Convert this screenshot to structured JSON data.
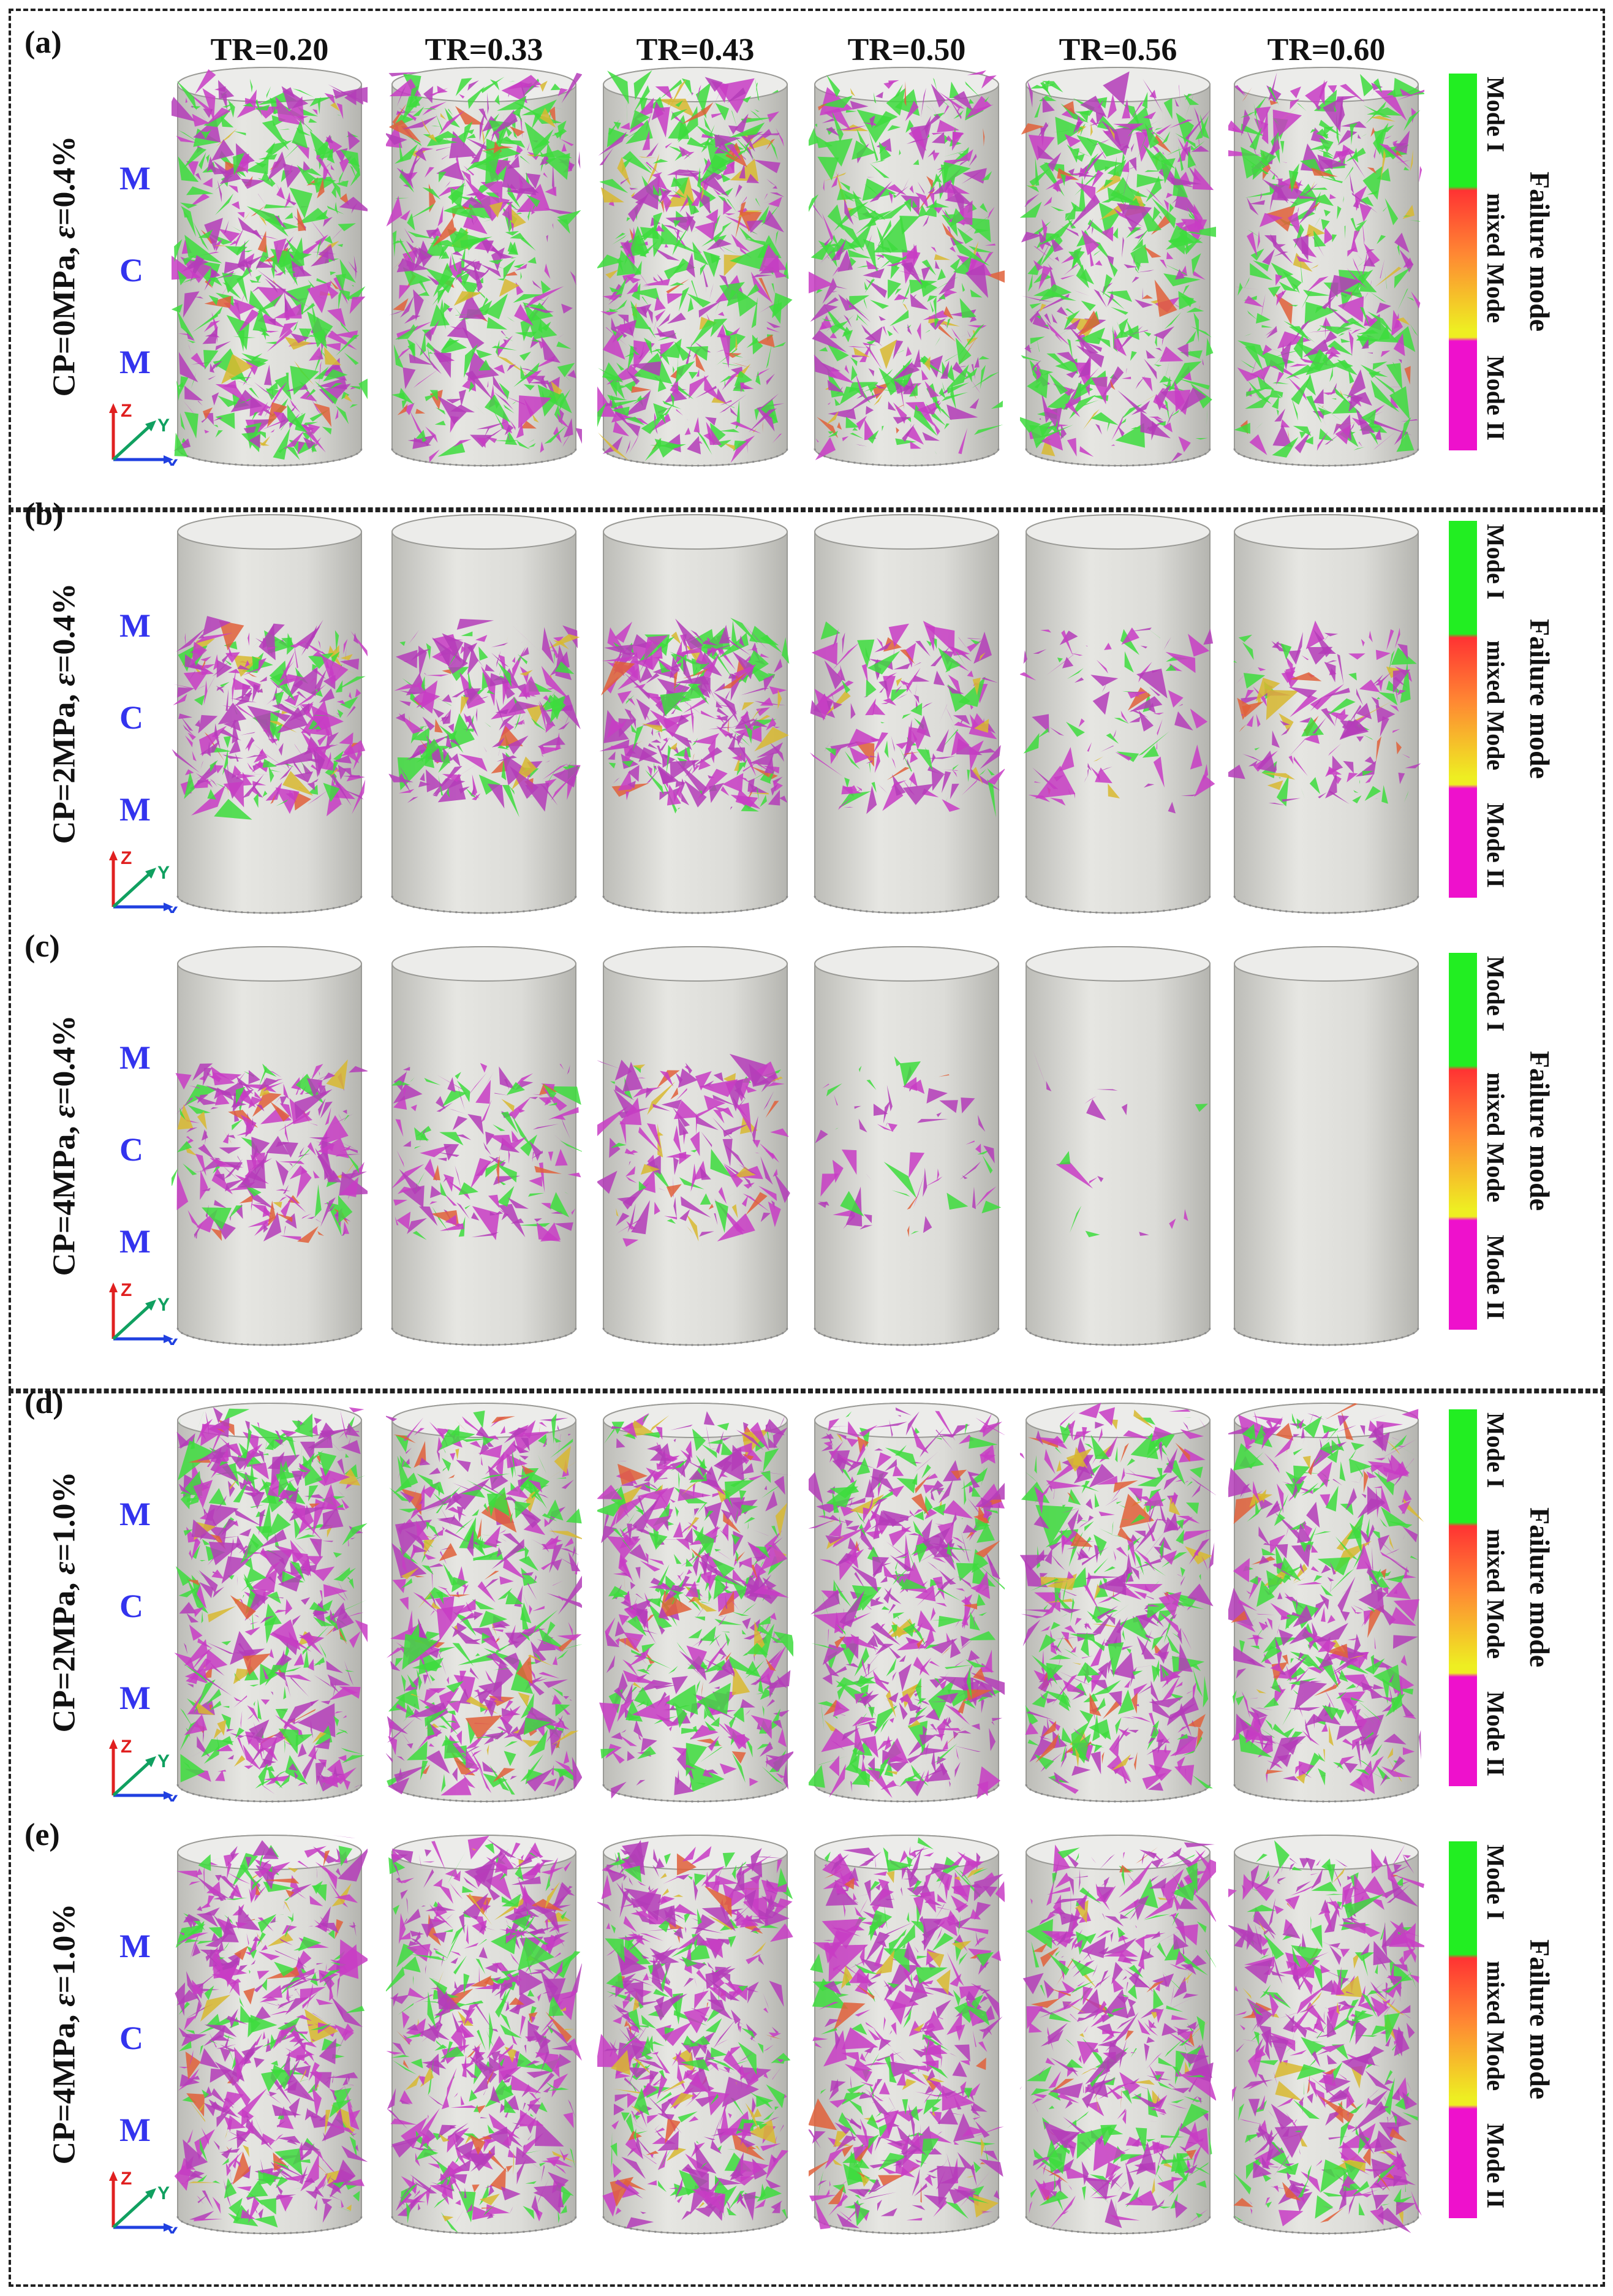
{
  "panels": [
    {
      "label": "(a)",
      "cp": "CP=0MPa, ",
      "eps_symbol": "ε",
      "strain": "=0.4%",
      "density": 0.9,
      "green": 0.45
    },
    {
      "label": "(b)",
      "cp": "CP=2MPa, ",
      "eps_symbol": "ε",
      "strain": "=0.4%",
      "density": 0.45,
      "green": 0.2
    },
    {
      "label": "(c)",
      "cp": "CP=4MPa, ",
      "eps_symbol": "ε",
      "strain": "=0.4%",
      "density": 0.25,
      "green": 0.15
    },
    {
      "label": "(d)",
      "cp": "CP=2MPa, ",
      "eps_symbol": "ε",
      "strain": "=1.0%",
      "density": 1.0,
      "green": 0.3
    },
    {
      "label": "(e)",
      "cp": "CP=4MPa, ",
      "eps_symbol": "ε",
      "strain": "=1.0%",
      "density": 1.0,
      "green": 0.22
    }
  ],
  "tr_headers": [
    "TR=0.20",
    "TR=0.33",
    "TR=0.43",
    "TR=0.50",
    "TR=0.56",
    "TR=0.60"
  ],
  "zones": [
    "M",
    "C",
    "M"
  ],
  "axes": {
    "z": "Z",
    "y": "Y",
    "x": "X"
  },
  "legend": {
    "title": "Failure mode",
    "mode1": "Mode I",
    "mixed": "mixed Mode",
    "mode2": "Mode II",
    "colors": {
      "mode1": "#22ee22",
      "mixed_top": "#ff3333",
      "mixed_bottom": "#eeee22",
      "mode2": "#ee11cc"
    }
  },
  "crack_amount": [
    [
      0.95,
      0.95,
      0.95,
      0.9,
      0.9,
      0.85
    ],
    [
      0.6,
      0.45,
      0.6,
      0.35,
      0.18,
      0.3
    ],
    [
      0.45,
      0.3,
      0.3,
      0.12,
      0.03,
      0.0
    ],
    [
      1.0,
      1.0,
      1.0,
      0.95,
      0.9,
      0.9
    ],
    [
      1.0,
      1.0,
      1.0,
      0.95,
      0.92,
      0.9
    ]
  ]
}
